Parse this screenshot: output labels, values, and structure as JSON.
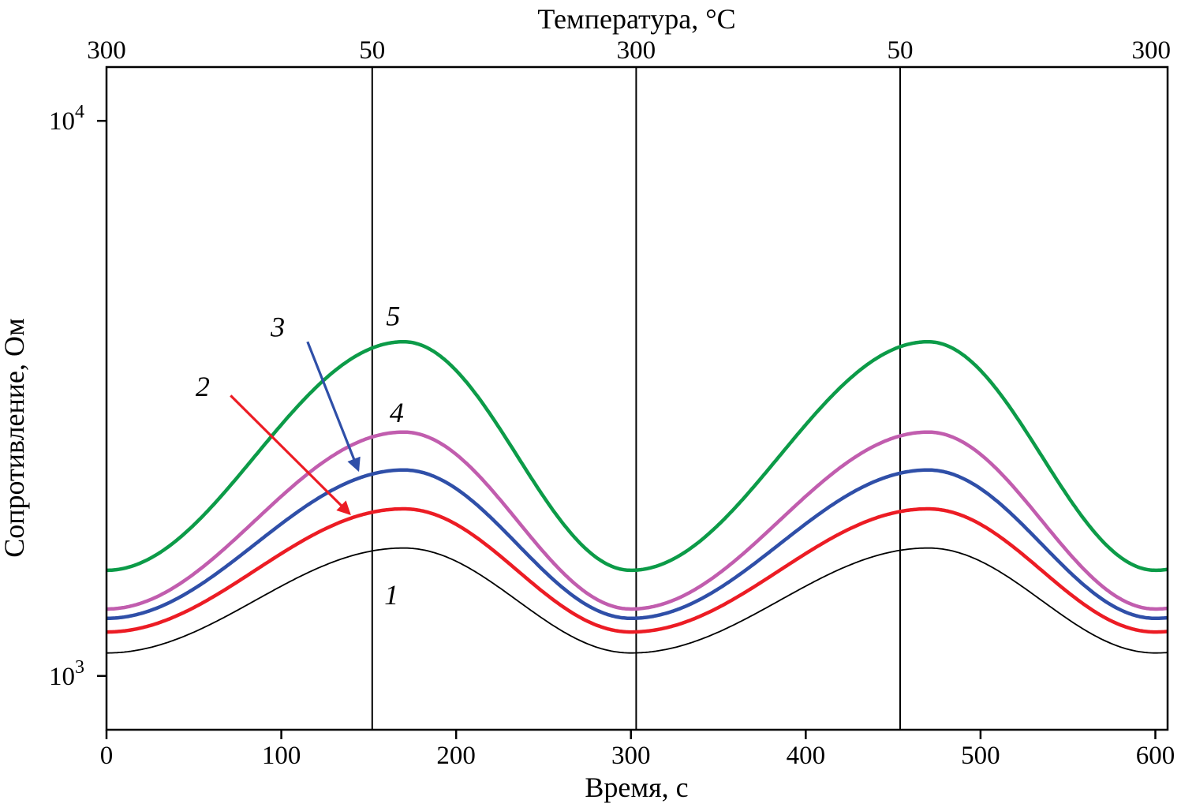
{
  "chart_data": {
    "type": "line",
    "top_axis": {
      "label": "Температура, °C",
      "ticks": [
        {
          "t": 0,
          "label": "300"
        },
        {
          "t": 152,
          "label": "50"
        },
        {
          "t": 303,
          "label": "300"
        },
        {
          "t": 454,
          "label": "50"
        },
        {
          "t": 607,
          "label": "300"
        }
      ]
    },
    "x_axis": {
      "label": "Время, с",
      "range": [
        0,
        607
      ],
      "ticks": [
        0,
        100,
        200,
        300,
        400,
        500,
        600
      ]
    },
    "y_axis": {
      "label": "Сопротивление, Ом",
      "scale": "log",
      "range": [
        800,
        12500
      ],
      "ticks": [
        {
          "value": 10000,
          "base": "10",
          "exp": "4"
        },
        {
          "value": 1000,
          "base": "10",
          "exp": "3"
        }
      ]
    },
    "reference_lines_t": [
      152,
      303,
      454
    ],
    "waveform": {
      "period_s": 300,
      "rise_s": 170,
      "fall_s": 130,
      "note": "Periodic resistance response to temperature cycling 300-50-300 °C; maxima near t = 170 s and 470 s, minima near t = 0, 300, 600 s"
    },
    "samples_t": [
      0,
      30,
      60,
      90,
      120,
      150,
      180,
      210,
      240,
      270,
      300,
      330,
      360,
      390,
      420,
      450,
      480,
      510,
      540,
      570,
      600
    ],
    "series": [
      {
        "name": "1",
        "color": "#000000",
        "width": 1.8,
        "r_min": 1100,
        "r_max": 1700,
        "samples_r": [
          1100,
          1136,
          1241,
          1395,
          1559,
          1675,
          1689,
          1548,
          1332,
          1162,
          1100,
          1136,
          1241,
          1395,
          1559,
          1675,
          1689,
          1548,
          1332,
          1162,
          1100
        ]
      },
      {
        "name": "2",
        "color": "#EC1C24",
        "width": 4.5,
        "r_min": 1200,
        "r_max": 2000,
        "samples_r": [
          1200,
          1247,
          1383,
          1586,
          1807,
          1966,
          1985,
          1791,
          1502,
          1280,
          1200,
          1247,
          1383,
          1586,
          1807,
          1966,
          1985,
          1791,
          1502,
          1280,
          1200
        ]
      },
      {
        "name": "3",
        "color": "#2F4FA8",
        "width": 4.5,
        "r_min": 1270,
        "r_max": 2350,
        "samples_r": [
          1270,
          1330,
          1506,
          1777,
          2080,
          2302,
          2329,
          2058,
          1665,
          1372,
          1270,
          1330,
          1506,
          1777,
          2080,
          2302,
          2329,
          2058,
          1665,
          1372,
          1270
        ]
      },
      {
        "name": "4",
        "color": "#C15DAE",
        "width": 4.5,
        "r_min": 1320,
        "r_max": 2750,
        "samples_r": [
          1320,
          1395,
          1618,
          1971,
          2377,
          2683,
          2721,
          2347,
          1823,
          1448,
          1320,
          1395,
          1618,
          1971,
          2377,
          2683,
          2721,
          2347,
          1823,
          1448,
          1320
        ]
      },
      {
        "name": "5",
        "color": "#0C9B48",
        "width": 4.5,
        "r_min": 1550,
        "r_max": 4000,
        "samples_r": [
          1550,
          1664,
          2016,
          2601,
          3313,
          3875,
          3947,
          3259,
          2352,
          1746,
          1550,
          1664,
          2016,
          2601,
          3313,
          3875,
          3947,
          3259,
          2352,
          1746,
          1550
        ]
      }
    ],
    "annotations": [
      {
        "label": "5",
        "t": 164,
        "r": 4450
      },
      {
        "label": "4",
        "t": 166,
        "r": 2980
      },
      {
        "label": "3",
        "t": 98,
        "r": 4250
      },
      {
        "label": "2",
        "t": 55,
        "r": 3320
      },
      {
        "label": "1",
        "t": 163,
        "r": 1400
      }
    ],
    "arrows": [
      {
        "points_to": "2",
        "color": "#EC1C24",
        "from_t": 71,
        "from_r": 3200,
        "to_t": 139,
        "to_r": 1960
      },
      {
        "points_to": "3",
        "color": "#2F4FA8",
        "from_t": 115,
        "from_r": 4000,
        "to_t": 144,
        "to_r": 2350
      }
    ]
  }
}
